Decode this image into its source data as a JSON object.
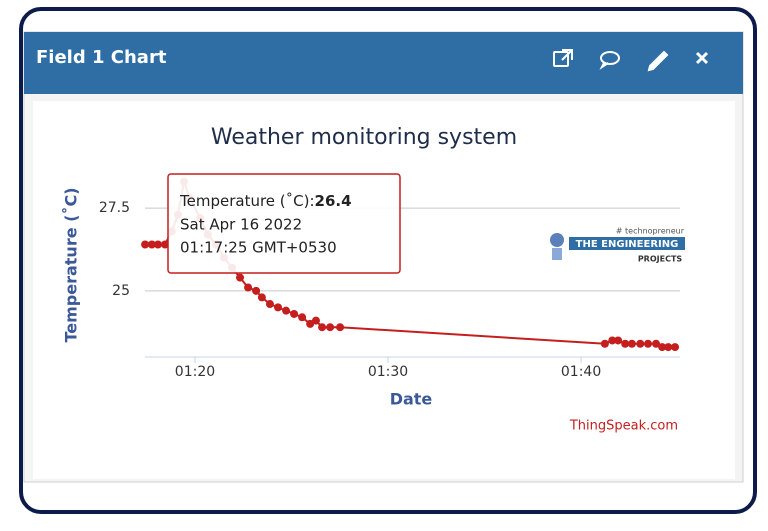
{
  "panel": {
    "title": "Field 1 Chart"
  },
  "chart_data": {
    "type": "line",
    "title": "Weather monitoring system",
    "x_label": "Date",
    "y_label": "Temperature (˚C)",
    "x": [
      "01:17:25",
      "01:17:46",
      "01:18:05",
      "01:18:27",
      "01:18:48",
      "01:19:07",
      "01:19:26",
      "01:19:44",
      "01:20:16",
      "01:20:40",
      "01:21:05",
      "01:21:30",
      "01:21:55",
      "01:22:20",
      "01:22:45",
      "01:23:10",
      "01:23:28",
      "01:23:53",
      "01:24:18",
      "01:24:43",
      "01:25:08",
      "01:25:33",
      "01:25:58",
      "01:26:16",
      "01:26:35",
      "01:27:00",
      "01:27:31",
      "01:41:14",
      "01:41:37",
      "01:41:55",
      "01:42:17",
      "01:42:38",
      "01:43:04",
      "01:43:28",
      "01:43:53",
      "01:44:12",
      "01:44:31",
      "01:44:52"
    ],
    "values": [
      26.4,
      26.4,
      26.4,
      26.4,
      26.8,
      27.3,
      28.3,
      27.8,
      27.2,
      26.7,
      26.4,
      26.0,
      25.7,
      25.4,
      25.1,
      25.0,
      24.8,
      24.6,
      24.5,
      24.4,
      24.3,
      24.2,
      24.0,
      24.1,
      23.9,
      23.9,
      23.9,
      23.4,
      23.5,
      23.5,
      23.4,
      23.4,
      23.4,
      23.4,
      23.4,
      23.3,
      23.3,
      23.3
    ],
    "color": "#c41e1e",
    "xlim": [
      "01:17:20",
      "01:44:55"
    ],
    "xticks": [
      "01:20",
      "01:30",
      "01:40"
    ],
    "ylim": [
      23,
      28.5
    ],
    "yticks": [
      25,
      27.5
    ],
    "grid": true,
    "tooltip": {
      "label": "Temperature (˚C):",
      "date": "Sat Apr 16 2022",
      "time": "01:17:25 GMT+0530"
    },
    "credit": "ThingSpeak.com"
  },
  "watermark": {
    "tagline": "# technopreneur",
    "name": "THE ENGINEERING",
    "sub": "PROJECTS"
  }
}
